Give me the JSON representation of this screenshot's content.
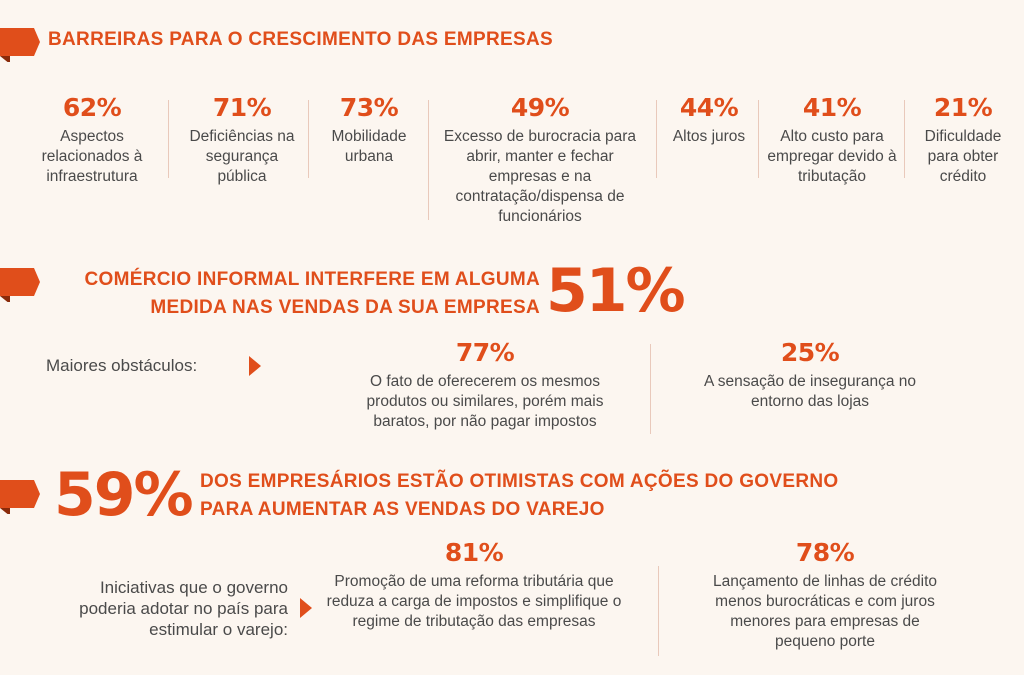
{
  "section1": {
    "title": "BARREIRAS PARA O CRESCIMENTO DAS EMPRESAS",
    "stats": [
      {
        "pct": "62%",
        "desc": "Aspectos relacionados à infraestrutura"
      },
      {
        "pct": "71%",
        "desc": "Deficiências na segurança pública"
      },
      {
        "pct": "73%",
        "desc": "Mobilidade urbana"
      },
      {
        "pct": "49%",
        "desc": "Excesso de burocracia para abrir, manter e fechar empresas e na contratação/dispensa de funcionários"
      },
      {
        "pct": "44%",
        "desc": "Altos juros"
      },
      {
        "pct": "41%",
        "desc": "Alto custo para empregar devido à tributação"
      },
      {
        "pct": "21%",
        "desc": "Dificuldade para obter crédito"
      }
    ]
  },
  "section2": {
    "title_line1": "COMÉRCIO INFORMAL INTERFERE EM ALGUMA",
    "title_line2": "MEDIDA NAS VENDAS DA SUA EMPRESA",
    "big_pct": "51%",
    "label": "Maiores obstáculos:",
    "stats": [
      {
        "pct": "77%",
        "desc": "O fato de oferecerem os mesmos produtos ou similares, porém mais baratos, por não pagar impostos"
      },
      {
        "pct": "25%",
        "desc": "A sensação de insegurança no entorno das lojas"
      }
    ]
  },
  "section3": {
    "big_pct": "59%",
    "title_line1": "DOS EMPRESÁRIOS ESTÃO OTIMISTAS COM AÇÕES DO GOVERNO",
    "title_line2": "PARA AUMENTAR AS VENDAS DO VAREJO",
    "label": "Iniciativas que o governo poderia adotar no país para estimular o varejo:",
    "stats": [
      {
        "pct": "81%",
        "desc": "Promoção de uma reforma tributária que reduza a carga de impostos e simplifique o regime de tributação das empresas"
      },
      {
        "pct": "78%",
        "desc": "Lançamento de linhas de crédito menos burocráticas e com juros menores para empresas de pequeno porte"
      }
    ]
  },
  "colors": {
    "accent": "#e04e1b",
    "accent_dark": "#8a2a0a",
    "background": "#fcf6f0",
    "text": "#4a4a4a"
  }
}
